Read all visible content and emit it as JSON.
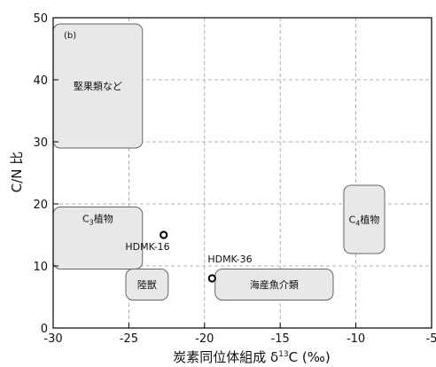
{
  "chart_data": {
    "type": "scatter",
    "panel_label": "(b)",
    "title": "",
    "xlabel": "炭素同位体組成 δ¹³C (‰)",
    "xlabel_prefix": "炭素同位体組成 δ",
    "xlabel_sup": "13",
    "xlabel_suffix": "C (‰)",
    "ylabel": "C/N 比",
    "xlim": [
      -30,
      -5
    ],
    "ylim": [
      0,
      50
    ],
    "x_ticks": [
      -30,
      -25,
      -20,
      -15,
      -10,
      -5
    ],
    "x_tick_labels": [
      "-30",
      "-25",
      "-20",
      "-15",
      "-10",
      "-5"
    ],
    "y_ticks": [
      0,
      10,
      20,
      30,
      40,
      50
    ],
    "y_tick_labels": [
      "0",
      "10",
      "20",
      "30",
      "40",
      "50"
    ],
    "grid": true,
    "regions": [
      {
        "name": "堅果類など",
        "x": [
          -30,
          -24.1
        ],
        "y": [
          29,
          49
        ]
      },
      {
        "name_prefix": "C",
        "name_sub": "3",
        "name_suffix": "植物",
        "name": "C3植物",
        "x": [
          -30,
          -24.1
        ],
        "y": [
          9.5,
          19.5
        ]
      },
      {
        "name": "陸獣",
        "x": [
          -25.2,
          -22.4
        ],
        "y": [
          4.5,
          9.5
        ]
      },
      {
        "name": "海産魚介類",
        "x": [
          -19.3,
          -11.5
        ],
        "y": [
          4.5,
          9.5
        ]
      },
      {
        "name_prefix": "C",
        "name_sub": "4",
        "name_suffix": "植物",
        "name": "C4植物",
        "x": [
          -10.8,
          -8.1
        ],
        "y": [
          12,
          23
        ]
      }
    ],
    "points": [
      {
        "name": "HDMK-16",
        "x": -22.7,
        "y": 15
      },
      {
        "name": "HDMK-36",
        "x": -19.5,
        "y": 8
      }
    ]
  },
  "colors": {
    "region_fill": "#e8e8e8",
    "region_stroke": "#666666",
    "grid": "#9a9a9a",
    "axis": "#000000",
    "point_stroke": "#000000"
  }
}
